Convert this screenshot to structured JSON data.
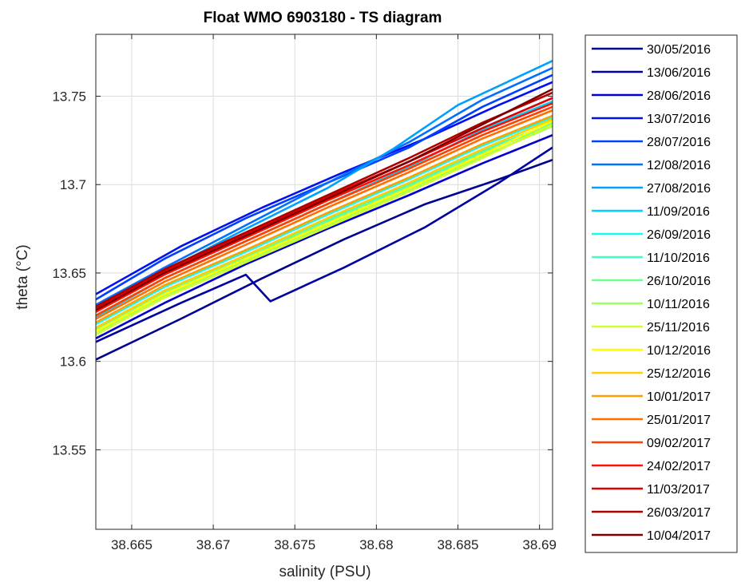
{
  "chart_data": {
    "type": "line",
    "title": "Float WMO 6903180 - TS diagram",
    "xlabel": "salinity (PSU)",
    "ylabel": "theta (°C)",
    "xlim": [
      38.6628,
      38.6908
    ],
    "ylim": [
      13.505,
      13.785
    ],
    "xticks": [
      38.665,
      38.67,
      38.675,
      38.68,
      38.685,
      38.69
    ],
    "xtick_labels": [
      "38.665",
      "38.67",
      "38.675",
      "38.68",
      "38.685",
      "38.69"
    ],
    "yticks": [
      13.55,
      13.6,
      13.65,
      13.7,
      13.75
    ],
    "ytick_labels": [
      "13.55",
      "13.6",
      "13.65",
      "13.7",
      "13.75"
    ],
    "grid": true,
    "legend_position": "outside-right",
    "series": [
      {
        "name": "30/05/2016",
        "color": "#00008f",
        "x": [
          38.6628,
          38.668,
          38.673,
          38.678,
          38.683,
          38.6875,
          38.6908
        ],
        "y": [
          13.601,
          13.624,
          13.647,
          13.669,
          13.689,
          13.703,
          13.714
        ]
      },
      {
        "name": "13/06/2016",
        "color": "#0000a3",
        "x": [
          38.6628,
          38.668,
          38.672,
          38.6735,
          38.678,
          38.683,
          38.6875,
          38.6908
        ],
        "y": [
          13.611,
          13.633,
          13.649,
          13.634,
          13.653,
          13.676,
          13.701,
          13.721
        ]
      },
      {
        "name": "28/06/2016",
        "color": "#0000cc",
        "x": [
          38.6628,
          38.667,
          38.672,
          38.677,
          38.682,
          38.6865,
          38.6908
        ],
        "y": [
          13.613,
          13.633,
          13.655,
          13.675,
          13.694,
          13.712,
          13.728
        ]
      },
      {
        "name": "13/07/2016",
        "color": "#0010f0",
        "x": [
          38.6628,
          38.668,
          38.673,
          38.678,
          38.683,
          38.6875,
          38.6908
        ],
        "y": [
          13.638,
          13.665,
          13.687,
          13.707,
          13.726,
          13.745,
          13.758
        ]
      },
      {
        "name": "28/07/2016",
        "color": "#0040ff",
        "x": [
          38.6628,
          38.667,
          38.672,
          38.677,
          38.682,
          38.6865,
          38.6908
        ],
        "y": [
          13.635,
          13.658,
          13.681,
          13.701,
          13.721,
          13.744,
          13.762
        ]
      },
      {
        "name": "12/08/2016",
        "color": "#0070ff",
        "x": [
          38.6628,
          38.667,
          38.672,
          38.677,
          38.682,
          38.6865,
          38.6908
        ],
        "y": [
          13.632,
          13.653,
          13.677,
          13.701,
          13.724,
          13.748,
          13.766
        ]
      },
      {
        "name": "27/08/2016",
        "color": "#00a0ff",
        "x": [
          38.6628,
          38.667,
          38.672,
          38.677,
          38.681,
          38.685,
          38.6908
        ],
        "y": [
          13.628,
          13.651,
          13.675,
          13.698,
          13.72,
          13.745,
          13.77
        ]
      },
      {
        "name": "11/09/2016",
        "color": "#00d0ff",
        "x": [
          38.6628,
          38.667,
          38.672,
          38.677,
          38.682,
          38.6865,
          38.6908
        ],
        "y": [
          13.625,
          13.647,
          13.668,
          13.689,
          13.71,
          13.731,
          13.747
        ]
      },
      {
        "name": "26/09/2016",
        "color": "#10ffef",
        "x": [
          38.6628,
          38.667,
          38.672,
          38.677,
          38.682,
          38.6865,
          38.6908
        ],
        "y": [
          13.621,
          13.642,
          13.662,
          13.683,
          13.703,
          13.722,
          13.738
        ]
      },
      {
        "name": "11/10/2016",
        "color": "#40ffbf",
        "x": [
          38.6628,
          38.667,
          38.672,
          38.677,
          38.682,
          38.6865,
          38.6908
        ],
        "y": [
          13.619,
          13.64,
          13.66,
          13.68,
          13.7,
          13.719,
          13.735
        ]
      },
      {
        "name": "26/10/2016",
        "color": "#70ff8f",
        "x": [
          38.6628,
          38.667,
          38.672,
          38.677,
          38.682,
          38.6865,
          38.6908
        ],
        "y": [
          13.618,
          13.639,
          13.659,
          13.679,
          13.699,
          13.718,
          13.734
        ]
      },
      {
        "name": "10/11/2016",
        "color": "#a0ff60",
        "x": [
          38.6628,
          38.667,
          38.672,
          38.677,
          38.682,
          38.6865,
          38.6908
        ],
        "y": [
          13.616,
          13.637,
          13.657,
          13.677,
          13.697,
          13.716,
          13.733
        ]
      },
      {
        "name": "25/11/2016",
        "color": "#d0ff30",
        "x": [
          38.6628,
          38.667,
          38.672,
          38.677,
          38.682,
          38.6865,
          38.6908
        ],
        "y": [
          13.615,
          13.636,
          13.656,
          13.676,
          13.696,
          13.715,
          13.734
        ]
      },
      {
        "name": "10/12/2016",
        "color": "#ffff00",
        "x": [
          38.6628,
          38.667,
          38.672,
          38.677,
          38.682,
          38.6865,
          38.6908
        ],
        "y": [
          13.617,
          13.638,
          13.658,
          13.678,
          13.698,
          13.717,
          13.736
        ]
      },
      {
        "name": "25/12/2016",
        "color": "#ffd000",
        "x": [
          38.6628,
          38.667,
          38.672,
          38.677,
          38.682,
          38.6865,
          38.6908
        ],
        "y": [
          13.619,
          13.64,
          13.66,
          13.681,
          13.701,
          13.72,
          13.737
        ]
      },
      {
        "name": "10/01/2017",
        "color": "#ffa000",
        "x": [
          38.6628,
          38.667,
          38.672,
          38.677,
          38.682,
          38.6865,
          38.6908
        ],
        "y": [
          13.622,
          13.643,
          13.663,
          13.684,
          13.704,
          13.723,
          13.739
        ]
      },
      {
        "name": "25/01/2017",
        "color": "#ff7000",
        "x": [
          38.6628,
          38.667,
          38.672,
          38.677,
          38.682,
          38.6865,
          38.6908
        ],
        "y": [
          13.624,
          13.645,
          13.666,
          13.687,
          13.707,
          13.726,
          13.742
        ]
      },
      {
        "name": "09/02/2017",
        "color": "#ff4000",
        "x": [
          38.6628,
          38.667,
          38.672,
          38.677,
          38.682,
          38.6865,
          38.6908
        ],
        "y": [
          13.626,
          13.647,
          13.668,
          13.689,
          13.709,
          13.728,
          13.744
        ]
      },
      {
        "name": "24/02/2017",
        "color": "#ff1000",
        "x": [
          38.6628,
          38.667,
          38.672,
          38.677,
          38.682,
          38.6865,
          38.6908
        ],
        "y": [
          13.628,
          13.649,
          13.67,
          13.691,
          13.711,
          13.73,
          13.746
        ]
      },
      {
        "name": "11/03/2017",
        "color": "#df0000",
        "x": [
          38.6628,
          38.667,
          38.672,
          38.677,
          38.682,
          38.6865,
          38.6908
        ],
        "y": [
          13.63,
          13.651,
          13.672,
          13.693,
          13.713,
          13.732,
          13.749
        ]
      },
      {
        "name": "26/03/2017",
        "color": "#b00000",
        "x": [
          38.6628,
          38.667,
          38.672,
          38.677,
          38.682,
          38.6865,
          38.6908
        ],
        "y": [
          13.631,
          13.652,
          13.673,
          13.694,
          13.715,
          13.735,
          13.752
        ]
      },
      {
        "name": "10/04/2017",
        "color": "#800000",
        "x": [
          38.6628,
          38.667,
          38.672,
          38.677,
          38.682,
          38.6865,
          38.6908
        ],
        "y": [
          13.629,
          13.65,
          13.671,
          13.692,
          13.713,
          13.734,
          13.754
        ]
      }
    ]
  }
}
